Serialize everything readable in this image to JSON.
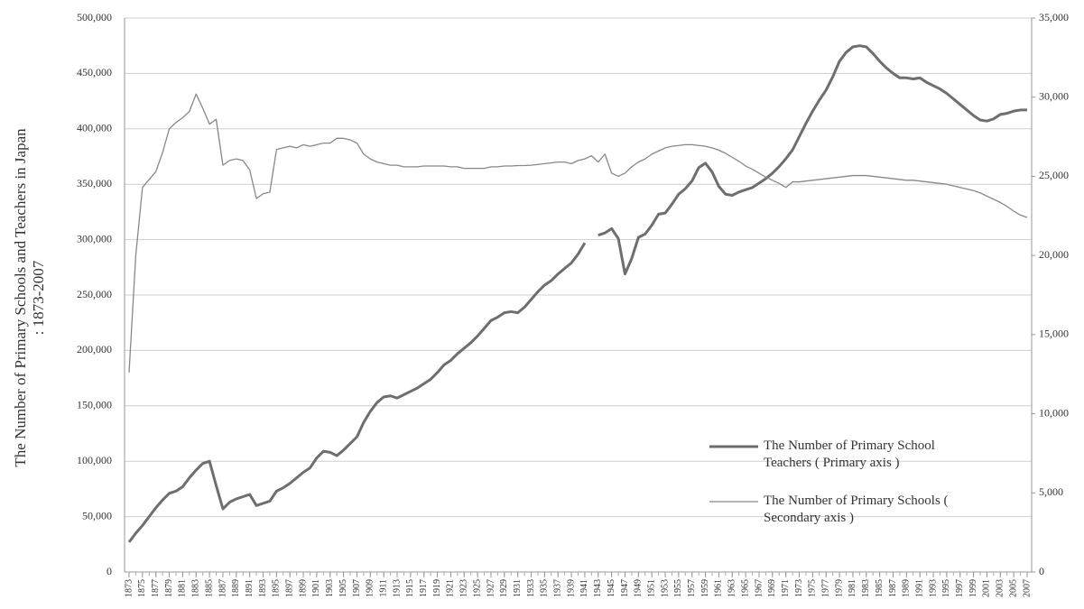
{
  "chart_data": {
    "type": "line",
    "y_label": [
      "The Number of Primary Schools and Teachers  in Japan",
      ": 1873-2007"
    ],
    "x": [
      1873,
      1874,
      1875,
      1876,
      1877,
      1878,
      1879,
      1880,
      1881,
      1882,
      1883,
      1884,
      1885,
      1886,
      1887,
      1888,
      1889,
      1890,
      1891,
      1892,
      1893,
      1894,
      1895,
      1896,
      1897,
      1898,
      1899,
      1900,
      1901,
      1902,
      1903,
      1904,
      1905,
      1906,
      1907,
      1908,
      1909,
      1910,
      1911,
      1912,
      1913,
      1914,
      1915,
      1916,
      1917,
      1918,
      1919,
      1920,
      1921,
      1922,
      1923,
      1924,
      1925,
      1926,
      1927,
      1928,
      1929,
      1930,
      1931,
      1932,
      1933,
      1934,
      1935,
      1936,
      1937,
      1938,
      1939,
      1940,
      1941,
      1942,
      1943,
      1944,
      1945,
      1946,
      1947,
      1948,
      1949,
      1950,
      1951,
      1952,
      1953,
      1954,
      1955,
      1956,
      1957,
      1958,
      1959,
      1960,
      1961,
      1962,
      1963,
      1964,
      1965,
      1966,
      1967,
      1968,
      1969,
      1970,
      1971,
      1972,
      1973,
      1974,
      1975,
      1976,
      1977,
      1978,
      1979,
      1980,
      1981,
      1982,
      1983,
      1984,
      1985,
      1986,
      1987,
      1988,
      1989,
      1990,
      1991,
      1992,
      1993,
      1994,
      1995,
      1996,
      1997,
      1998,
      1999,
      2000,
      2001,
      2002,
      2003,
      2004,
      2005,
      2006,
      2007
    ],
    "xlim": [
      1873,
      2007
    ],
    "xticks": [
      1873,
      1875,
      1877,
      1879,
      1881,
      1883,
      1885,
      1887,
      1889,
      1891,
      1893,
      1895,
      1897,
      1899,
      1901,
      1903,
      1905,
      1907,
      1909,
      1911,
      1913,
      1915,
      1917,
      1919,
      1921,
      1923,
      1925,
      1927,
      1929,
      1931,
      1933,
      1935,
      1937,
      1939,
      1941,
      1943,
      1945,
      1947,
      1949,
      1951,
      1953,
      1955,
      1957,
      1959,
      1961,
      1963,
      1965,
      1967,
      1969,
      1971,
      1973,
      1975,
      1977,
      1979,
      1981,
      1983,
      1985,
      1987,
      1989,
      1991,
      1993,
      1995,
      1997,
      1999,
      2001,
      2003,
      2005,
      2007
    ],
    "ylim": [
      0,
      500000
    ],
    "yticks": [
      0,
      {
        "value": 50000,
        "label": "50,000"
      },
      {
        "value": 100000,
        "label": "100,000"
      },
      {
        "value": 150000,
        "label": "150,000"
      },
      {
        "value": 200000,
        "label": "200,000"
      },
      {
        "value": 250000,
        "label": "250,000"
      },
      {
        "value": 300000,
        "label": "300,000"
      },
      {
        "value": 350000,
        "label": "350,000"
      },
      {
        "value": 400000,
        "label": "400,000"
      },
      {
        "value": 450000,
        "label": "450,000"
      },
      {
        "value": 500000,
        "label": "500,000"
      }
    ],
    "y2lim": [
      0,
      35000
    ],
    "y2ticks": [
      0,
      {
        "value": 5000,
        "label": "5,000"
      },
      {
        "value": 10000,
        "label": "10,000"
      },
      {
        "value": 15000,
        "label": "15,000"
      },
      {
        "value": 20000,
        "label": "20,000"
      },
      {
        "value": 25000,
        "label": "25,000"
      },
      {
        "value": 30000,
        "label": "30,000"
      },
      {
        "value": 35000,
        "label": "35,000"
      }
    ],
    "grid": true,
    "series": [
      {
        "name": "The Number of Primary School Teachers ( Primary axis )",
        "color": "#6e6e6e",
        "width": 3,
        "values": [
          27000,
          35000,
          42000,
          50000,
          58000,
          65000,
          71000,
          73000,
          77000,
          85000,
          92000,
          98000,
          100000,
          78000,
          57000,
          63000,
          66000,
          68000,
          70000,
          60000,
          62000,
          64000,
          73000,
          76000,
          80000,
          85000,
          90000,
          94000,
          103000,
          109000,
          108000,
          105000,
          110000,
          116000,
          122000,
          135000,
          145000,
          153000,
          158000,
          159000,
          157000,
          160000,
          163000,
          166000,
          170000,
          174000,
          180000,
          187000,
          191000,
          197000,
          202000,
          207000,
          213000,
          220000,
          227000,
          230000,
          234000,
          235000,
          234000,
          239000,
          246000,
          253000,
          259000,
          263000,
          269000,
          274000,
          279000,
          287000,
          297000,
          null,
          304000,
          306000,
          310000,
          301000,
          269000,
          283000,
          302000,
          305000,
          313000,
          323000,
          324000,
          332000,
          341000,
          346000,
          353000,
          365000,
          369000,
          361000,
          348000,
          341000,
          340000,
          343000,
          345000,
          347000,
          351000,
          355000,
          360000,
          366000,
          373000,
          381000,
          393000,
          405000,
          416000,
          426000,
          435000,
          447000,
          461000,
          469000,
          474000,
          475000,
          474000,
          468000,
          461000,
          455000,
          450000,
          446000,
          446000,
          445000,
          446000,
          442000,
          439000,
          436000,
          432000,
          427000,
          422000,
          417000,
          412000,
          408000,
          407000,
          409000,
          413000,
          414000,
          416000,
          417000,
          417000
        ]
      },
      {
        "name": "The Number of Primary Schools ( Secondary axis )",
        "color": "#888888",
        "width": 1.3,
        "axis": "y2",
        "values": [
          12600,
          20000,
          24300,
          24800,
          25300,
          26500,
          28000,
          28400,
          28700,
          29100,
          30200,
          29300,
          28300,
          28600,
          25700,
          26000,
          26100,
          26000,
          25400,
          23600,
          23900,
          24000,
          26700,
          26800,
          26900,
          26800,
          27000,
          26900,
          27000,
          27100,
          27100,
          27400,
          27400,
          27300,
          27100,
          26400,
          26100,
          25900,
          25800,
          25700,
          25700,
          25600,
          25600,
          25600,
          25650,
          25650,
          25650,
          25650,
          25600,
          25600,
          25500,
          25500,
          25500,
          25500,
          25600,
          25600,
          25650,
          25650,
          25680,
          25680,
          25700,
          25750,
          25800,
          25850,
          25900,
          25900,
          25800,
          26000,
          26100,
          26300,
          25900,
          26400,
          25200,
          25000,
          25200,
          25600,
          25900,
          26100,
          26400,
          26600,
          26800,
          26900,
          26950,
          27000,
          27000,
          26950,
          26900,
          26800,
          26650,
          26450,
          26200,
          25950,
          25650,
          25450,
          25200,
          24950,
          24750,
          24550,
          24300,
          24650,
          24650,
          24700,
          24750,
          24800,
          24850,
          24900,
          24950,
          25000,
          25050,
          25050,
          25050,
          25000,
          24950,
          24900,
          24850,
          24800,
          24750,
          24750,
          24700,
          24650,
          24600,
          24550,
          24500,
          24400,
          24300,
          24200,
          24100,
          23950,
          23750,
          23550,
          23350,
          23100,
          22800,
          22550,
          22400
        ]
      }
    ]
  }
}
